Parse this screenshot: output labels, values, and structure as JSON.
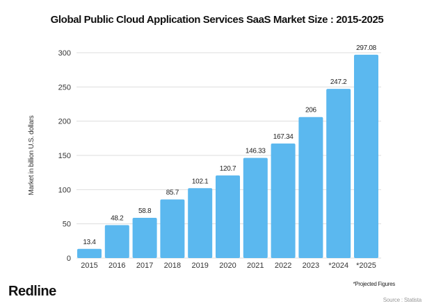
{
  "chart_data": {
    "type": "bar",
    "title": "Global Public Cloud Application Services SaaS Market Size : 2015-2025",
    "xlabel": "",
    "ylabel": "Market in billion U.S. dollars",
    "categories": [
      "2015",
      "2016",
      "2017",
      "2018",
      "2019",
      "2020",
      "2021",
      "2022",
      "2023",
      "*2024",
      "*2025"
    ],
    "values": [
      13.4,
      48.2,
      58.8,
      85.7,
      102.1,
      120.7,
      146.33,
      167.34,
      206,
      247.2,
      297.08
    ],
    "value_labels": [
      "13.4",
      "48.2",
      "58.8",
      "85.7",
      "102.1",
      "120.7",
      "146.33",
      "167.34",
      "206",
      "247.2",
      "297.08"
    ],
    "ylim": [
      0,
      300
    ],
    "yticks": [
      "0",
      "50",
      "100",
      "150",
      "200",
      "250",
      "300"
    ],
    "grid": true,
    "legend": "none",
    "bar_color": "#5bb8ef"
  },
  "footer": {
    "brand": "Redline",
    "note": "*Projected Figures",
    "source": "Source : Statista"
  }
}
